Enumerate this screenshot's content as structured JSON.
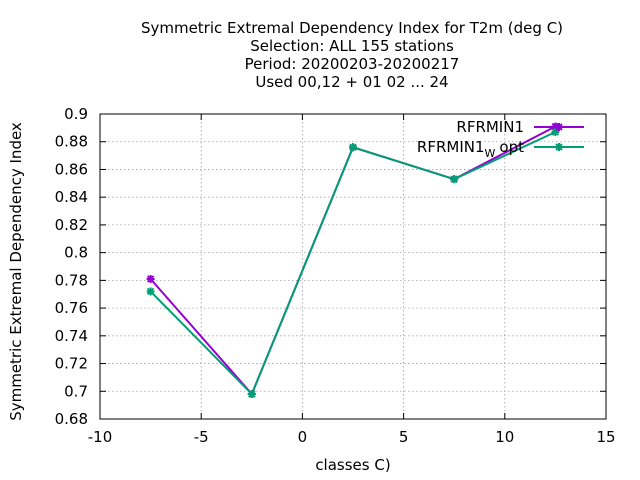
{
  "chart_data": {
    "type": "line",
    "title_lines": [
      "Symmetric Extremal Dependency Index  for T2m (deg C)",
      "Selection: ALL    155 stations",
      "Period: 20200203-20200217",
      "Used  00,12  + 01 02 ... 24"
    ],
    "xlabel": "classes C)",
    "ylabel": "Symmetric Extremal Dependency Index",
    "xlim": [
      -10,
      15
    ],
    "ylim": [
      0.68,
      0.9
    ],
    "xticks": [
      -10,
      -5,
      0,
      5,
      10,
      15
    ],
    "yticks": [
      0.68,
      0.7,
      0.72,
      0.74,
      0.76,
      0.78,
      0.8,
      0.82,
      0.84,
      0.86,
      0.88,
      0.9
    ],
    "grid": true,
    "legend_position": "top-right",
    "series": [
      {
        "name": "RFRMIN1",
        "name_sub": "",
        "name_tail": "",
        "color": "#9400d3",
        "x": [
          -7.5,
          -2.5,
          2.5,
          7.5,
          12.5
        ],
        "y": [
          0.781,
          0.698,
          0.876,
          0.853,
          0.891
        ]
      },
      {
        "name": "RFRMIN1",
        "name_sub": "W",
        "name_tail": "opt",
        "color": "#009e73",
        "x": [
          -7.5,
          -2.5,
          2.5,
          7.5,
          12.5
        ],
        "y": [
          0.772,
          0.698,
          0.876,
          0.853,
          0.887
        ]
      }
    ]
  }
}
